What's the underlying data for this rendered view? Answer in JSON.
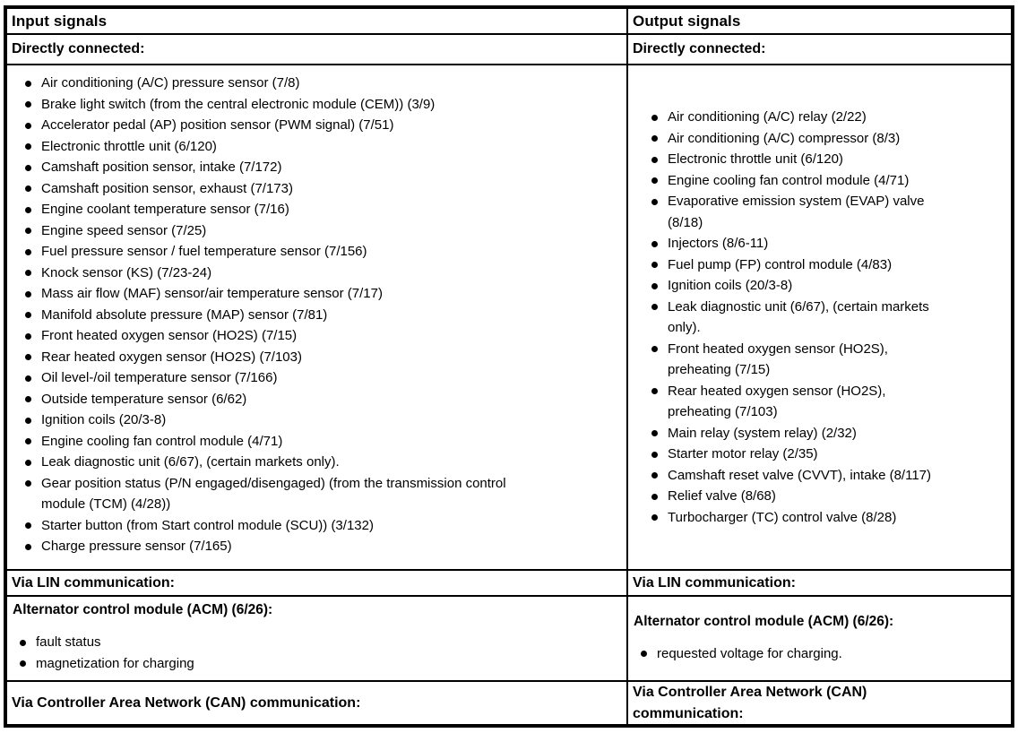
{
  "table": {
    "input_header": "Input signals",
    "output_header": "Output signals",
    "input_directly_connected_label": "Directly connected:",
    "output_directly_connected_label": "Directly connected:",
    "input_direct_items": [
      "Air conditioning (A/C) pressure sensor (7/8)",
      "Brake light switch (from the central electronic module (CEM)) (3/9)",
      "Accelerator pedal (AP) position sensor (PWM signal) (7/51)",
      "Electronic throttle unit (6/120)",
      "Camshaft position sensor, intake (7/172)",
      "Camshaft position sensor, exhaust (7/173)",
      "Engine coolant temperature sensor (7/16)",
      "Engine speed sensor (7/25)",
      "Fuel pressure sensor / fuel temperature sensor (7/156)",
      "Knock sensor (KS) (7/23-24)",
      "Mass air flow (MAF) sensor/air temperature sensor (7/17)",
      "Manifold absolute pressure (MAP) sensor (7/81)",
      "Front heated oxygen sensor (HO2S) (7/15)",
      "Rear heated oxygen sensor (HO2S) (7/103)",
      "Oil level-/oil temperature sensor (7/166)",
      "Outside temperature sensor (6/62)",
      "Ignition coils (20/3-8)",
      "Engine cooling fan control module (4/71)",
      "Leak diagnostic unit (6/67), (certain markets only).",
      "Gear position status (P/N engaged/disengaged) (from the transmission control\nmodule (TCM) (4/28))",
      "Starter button (from Start control module (SCU)) (3/132)",
      "Charge pressure sensor (7/165)"
    ],
    "output_direct_items": [
      "Air conditioning (A/C) relay (2/22)",
      "Air conditioning (A/C) compressor (8/3)",
      "Electronic throttle unit (6/120)",
      "Engine cooling fan control module (4/71)",
      "Evaporative emission system (EVAP) valve\n(8/18)",
      "Injectors (8/6-11)",
      "Fuel pump (FP) control module (4/83)",
      "Ignition coils (20/3-8)",
      "Leak diagnostic unit (6/67), (certain markets\nonly).",
      "Front heated oxygen sensor (HO2S),\npreheating (7/15)",
      "Rear heated oxygen sensor (HO2S),\npreheating (7/103)",
      "Main relay (system relay) (2/32)",
      "Starter motor relay (2/35)",
      "Camshaft reset valve (CVVT), intake (8/117)",
      "Relief valve (8/68)",
      "Turbocharger (TC) control valve (8/28)"
    ],
    "input_via_lin_label": "Via LIN communication:",
    "output_via_lin_label": "Via LIN communication:",
    "input_acm": {
      "title": "Alternator control module (ACM) (6/26):",
      "items": [
        "fault status",
        "magnetization for charging"
      ]
    },
    "output_acm": {
      "title": "Alternator control module (ACM) (6/26):",
      "items": [
        "requested voltage for charging."
      ]
    },
    "input_via_can_label": "Via Controller Area Network (CAN) communication:",
    "output_via_can_label": "Via Controller Area Network (CAN)\ncommunication:"
  }
}
